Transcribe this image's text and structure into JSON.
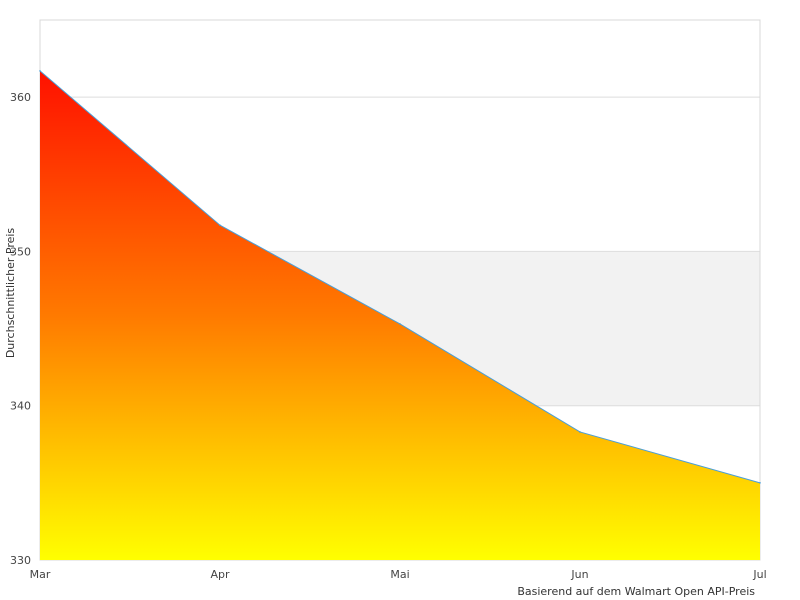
{
  "chart_data": {
    "type": "area",
    "ylabel": "Durchschnittlicher Preis",
    "xlabel": "",
    "footnote": "Basierend auf dem Walmart Open API-Preis",
    "categories": [
      "Mar",
      "Apr",
      "Mai",
      "Jun",
      "Jul"
    ],
    "series": [
      {
        "values": [
          361.7,
          351.7,
          345.3,
          338.3,
          335.0
        ]
      }
    ],
    "ylim": [
      330,
      365
    ],
    "yticks": [
      330,
      340,
      350,
      360
    ],
    "grid": true,
    "colors": {
      "fill_top": "#ff1100",
      "fill_mid": "#ff7a00",
      "fill_bottom": "#ffff00",
      "line": "#4a9fd8",
      "band": "#f2f2f2",
      "gridline": "#dddddd",
      "frame": "#d8d8d8"
    }
  }
}
